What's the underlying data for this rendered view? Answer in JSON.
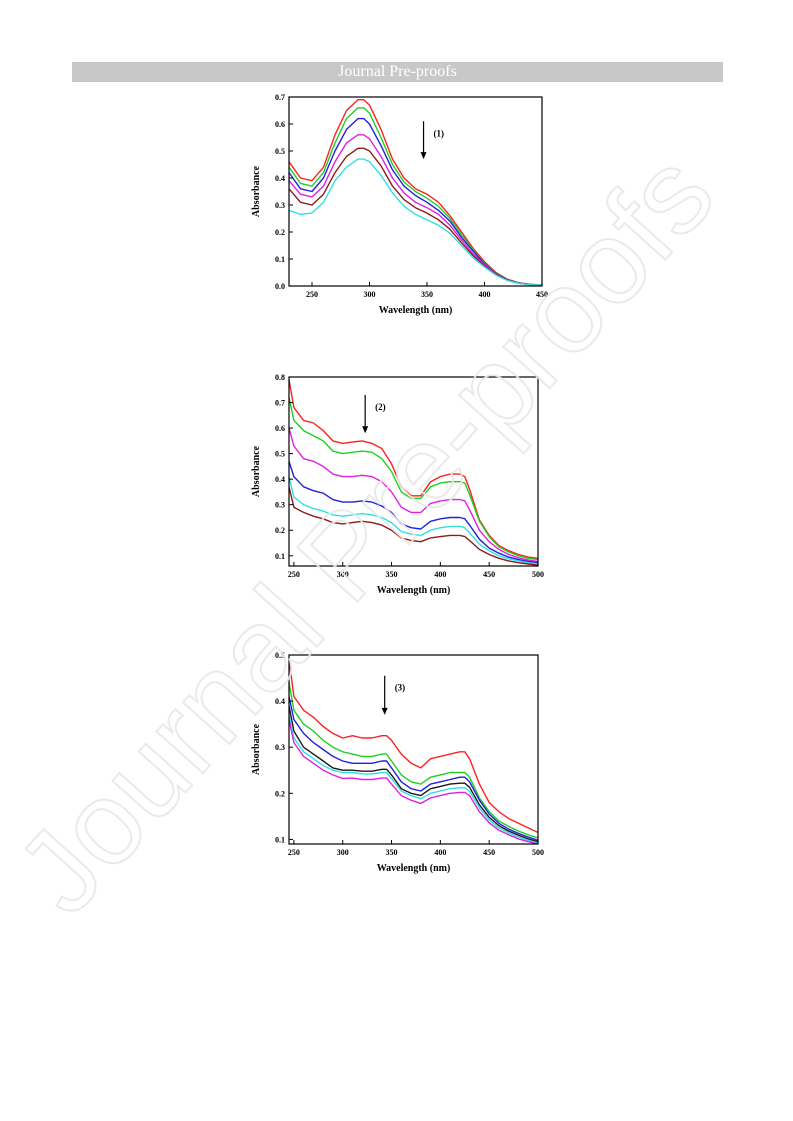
{
  "header": {
    "banner_text": "Journal Pre-proofs"
  },
  "watermark": {
    "text": "Journal Pre-proofs",
    "color": "#e8e8e8"
  },
  "chart_data": [
    {
      "type": "line",
      "annotation": "(1)",
      "xlabel": "Wavelength (nm)",
      "ylabel": "Absorbance",
      "xlim": [
        230,
        450
      ],
      "ylim": [
        0,
        0.7
      ],
      "xticks": [
        250,
        300,
        350,
        400,
        450
      ],
      "yticks": [
        0.0,
        0.1,
        0.2,
        0.3,
        0.4,
        0.5,
        0.6,
        0.7
      ],
      "arrow": {
        "x": 347,
        "y_top": 0.61,
        "y_bottom": 0.47
      },
      "x": [
        230,
        240,
        250,
        260,
        270,
        280,
        290,
        295,
        300,
        310,
        320,
        330,
        340,
        350,
        360,
        370,
        380,
        390,
        400,
        410,
        420,
        430,
        440,
        450
      ],
      "series": [
        {
          "color": "#ff2020",
          "values": [
            0.46,
            0.4,
            0.39,
            0.44,
            0.56,
            0.65,
            0.69,
            0.69,
            0.67,
            0.58,
            0.47,
            0.4,
            0.36,
            0.34,
            0.31,
            0.26,
            0.2,
            0.14,
            0.09,
            0.05,
            0.025,
            0.012,
            0.006,
            0.004
          ]
        },
        {
          "color": "#20d020",
          "values": [
            0.44,
            0.38,
            0.37,
            0.42,
            0.53,
            0.62,
            0.66,
            0.66,
            0.64,
            0.55,
            0.45,
            0.385,
            0.35,
            0.325,
            0.295,
            0.25,
            0.19,
            0.135,
            0.085,
            0.048,
            0.024,
            0.011,
            0.006,
            0.004
          ]
        },
        {
          "color": "#2020e0",
          "values": [
            0.42,
            0.36,
            0.35,
            0.4,
            0.5,
            0.58,
            0.62,
            0.62,
            0.6,
            0.52,
            0.43,
            0.37,
            0.335,
            0.31,
            0.28,
            0.24,
            0.18,
            0.13,
            0.082,
            0.046,
            0.023,
            0.011,
            0.006,
            0.004
          ]
        },
        {
          "color": "#e020e0",
          "values": [
            0.39,
            0.34,
            0.33,
            0.37,
            0.46,
            0.53,
            0.56,
            0.56,
            0.545,
            0.48,
            0.4,
            0.345,
            0.31,
            0.29,
            0.265,
            0.225,
            0.17,
            0.12,
            0.078,
            0.044,
            0.022,
            0.01,
            0.005,
            0.004
          ]
        },
        {
          "color": "#8b1a1a",
          "values": [
            0.36,
            0.31,
            0.3,
            0.34,
            0.42,
            0.48,
            0.51,
            0.51,
            0.5,
            0.445,
            0.37,
            0.32,
            0.29,
            0.27,
            0.245,
            0.21,
            0.16,
            0.113,
            0.073,
            0.042,
            0.021,
            0.01,
            0.005,
            0.004
          ]
        },
        {
          "color": "#30e0e0",
          "values": [
            0.28,
            0.265,
            0.27,
            0.31,
            0.39,
            0.44,
            0.47,
            0.47,
            0.46,
            0.41,
            0.345,
            0.295,
            0.265,
            0.245,
            0.225,
            0.195,
            0.15,
            0.105,
            0.07,
            0.04,
            0.02,
            0.01,
            0.005,
            0.004
          ]
        }
      ]
    },
    {
      "type": "line",
      "annotation": "(2)",
      "xlabel": "Wavelength (nm)",
      "ylabel": "Absorbance",
      "xlim": [
        245,
        500
      ],
      "ylim": [
        0.06,
        0.8
      ],
      "xticks": [
        250,
        300,
        350,
        400,
        450,
        500
      ],
      "yticks": [
        0.1,
        0.2,
        0.3,
        0.4,
        0.5,
        0.6,
        0.7,
        0.8
      ],
      "arrow": {
        "x": 323,
        "y_top": 0.73,
        "y_bottom": 0.58
      },
      "x": [
        245,
        250,
        260,
        270,
        280,
        290,
        300,
        310,
        320,
        330,
        340,
        350,
        360,
        370,
        380,
        390,
        400,
        410,
        420,
        425,
        430,
        440,
        450,
        460,
        470,
        480,
        490,
        500
      ],
      "series": [
        {
          "color": "#ff2020",
          "values": [
            0.79,
            0.68,
            0.63,
            0.62,
            0.59,
            0.55,
            0.54,
            0.545,
            0.55,
            0.54,
            0.52,
            0.46,
            0.37,
            0.335,
            0.335,
            0.39,
            0.41,
            0.42,
            0.42,
            0.41,
            0.36,
            0.24,
            0.18,
            0.14,
            0.12,
            0.105,
            0.095,
            0.09
          ]
        },
        {
          "color": "#20d020",
          "values": [
            0.72,
            0.63,
            0.59,
            0.57,
            0.55,
            0.51,
            0.5,
            0.505,
            0.51,
            0.505,
            0.48,
            0.43,
            0.35,
            0.325,
            0.325,
            0.37,
            0.385,
            0.39,
            0.39,
            0.385,
            0.34,
            0.235,
            0.175,
            0.135,
            0.115,
            0.1,
            0.09,
            0.085
          ]
        },
        {
          "color": "#e020e0",
          "values": [
            0.6,
            0.53,
            0.48,
            0.47,
            0.45,
            0.42,
            0.41,
            0.41,
            0.415,
            0.41,
            0.39,
            0.35,
            0.29,
            0.27,
            0.27,
            0.305,
            0.315,
            0.32,
            0.32,
            0.315,
            0.28,
            0.2,
            0.155,
            0.125,
            0.105,
            0.092,
            0.083,
            0.078
          ]
        },
        {
          "color": "#2020e0",
          "values": [
            0.47,
            0.41,
            0.37,
            0.355,
            0.345,
            0.32,
            0.31,
            0.31,
            0.315,
            0.31,
            0.295,
            0.27,
            0.225,
            0.21,
            0.205,
            0.235,
            0.245,
            0.25,
            0.25,
            0.245,
            0.22,
            0.165,
            0.13,
            0.11,
            0.095,
            0.085,
            0.078,
            0.073
          ]
        },
        {
          "color": "#30e0e0",
          "values": [
            0.41,
            0.33,
            0.3,
            0.285,
            0.275,
            0.26,
            0.255,
            0.26,
            0.265,
            0.26,
            0.25,
            0.23,
            0.195,
            0.185,
            0.18,
            0.2,
            0.21,
            0.215,
            0.215,
            0.21,
            0.19,
            0.145,
            0.12,
            0.1,
            0.088,
            0.08,
            0.073,
            0.068
          ]
        },
        {
          "color": "#8b1a1a",
          "values": [
            0.37,
            0.29,
            0.27,
            0.255,
            0.245,
            0.23,
            0.225,
            0.23,
            0.235,
            0.23,
            0.22,
            0.2,
            0.17,
            0.16,
            0.155,
            0.17,
            0.175,
            0.18,
            0.18,
            0.175,
            0.16,
            0.125,
            0.105,
            0.09,
            0.08,
            0.073,
            0.068,
            0.063
          ]
        }
      ]
    },
    {
      "type": "line",
      "annotation": "(3)",
      "xlabel": "Wavelength (nm)",
      "ylabel": "Absorbance",
      "xlim": [
        245,
        500
      ],
      "ylim": [
        0.09,
        0.5
      ],
      "xticks": [
        250,
        300,
        350,
        400,
        450,
        500
      ],
      "yticks": [
        0.1,
        0.2,
        0.3,
        0.4,
        0.5
      ],
      "arrow": {
        "x": 343,
        "y_top": 0.455,
        "y_bottom": 0.37
      },
      "x": [
        245,
        250,
        260,
        270,
        280,
        290,
        300,
        310,
        320,
        330,
        340,
        345,
        350,
        360,
        370,
        380,
        390,
        400,
        410,
        420,
        425,
        430,
        440,
        450,
        460,
        470,
        480,
        490,
        500
      ],
      "series": [
        {
          "color": "#ff2020",
          "values": [
            0.49,
            0.41,
            0.38,
            0.365,
            0.345,
            0.33,
            0.32,
            0.325,
            0.32,
            0.32,
            0.325,
            0.325,
            0.315,
            0.285,
            0.265,
            0.255,
            0.275,
            0.28,
            0.285,
            0.29,
            0.29,
            0.275,
            0.22,
            0.18,
            0.16,
            0.145,
            0.135,
            0.125,
            0.115
          ]
        },
        {
          "color": "#20d020",
          "values": [
            0.44,
            0.38,
            0.35,
            0.335,
            0.315,
            0.3,
            0.29,
            0.285,
            0.28,
            0.28,
            0.285,
            0.285,
            0.27,
            0.24,
            0.225,
            0.22,
            0.235,
            0.24,
            0.245,
            0.245,
            0.245,
            0.235,
            0.19,
            0.16,
            0.14,
            0.128,
            0.118,
            0.11,
            0.103
          ]
        },
        {
          "color": "#2020e0",
          "values": [
            0.41,
            0.36,
            0.33,
            0.31,
            0.295,
            0.28,
            0.27,
            0.265,
            0.265,
            0.265,
            0.27,
            0.27,
            0.255,
            0.225,
            0.21,
            0.205,
            0.22,
            0.225,
            0.23,
            0.235,
            0.235,
            0.225,
            0.185,
            0.155,
            0.135,
            0.122,
            0.113,
            0.105,
            0.098
          ]
        },
        {
          "color": "#1a1a1a",
          "values": [
            0.39,
            0.335,
            0.3,
            0.285,
            0.27,
            0.255,
            0.25,
            0.25,
            0.248,
            0.248,
            0.252,
            0.252,
            0.24,
            0.21,
            0.2,
            0.195,
            0.21,
            0.215,
            0.22,
            0.222,
            0.222,
            0.213,
            0.175,
            0.148,
            0.13,
            0.118,
            0.109,
            0.101,
            0.095
          ]
        },
        {
          "color": "#30e0e0",
          "values": [
            0.37,
            0.32,
            0.29,
            0.275,
            0.26,
            0.25,
            0.245,
            0.245,
            0.242,
            0.242,
            0.245,
            0.245,
            0.232,
            0.205,
            0.195,
            0.188,
            0.2,
            0.205,
            0.21,
            0.212,
            0.212,
            0.204,
            0.168,
            0.142,
            0.125,
            0.114,
            0.105,
            0.098,
            0.092
          ]
        },
        {
          "color": "#e020e0",
          "values": [
            0.36,
            0.31,
            0.28,
            0.265,
            0.25,
            0.24,
            0.232,
            0.233,
            0.23,
            0.23,
            0.233,
            0.233,
            0.22,
            0.195,
            0.185,
            0.178,
            0.19,
            0.195,
            0.2,
            0.202,
            0.202,
            0.195,
            0.16,
            0.136,
            0.12,
            0.11,
            0.101,
            0.095,
            0.09
          ]
        }
      ]
    }
  ]
}
